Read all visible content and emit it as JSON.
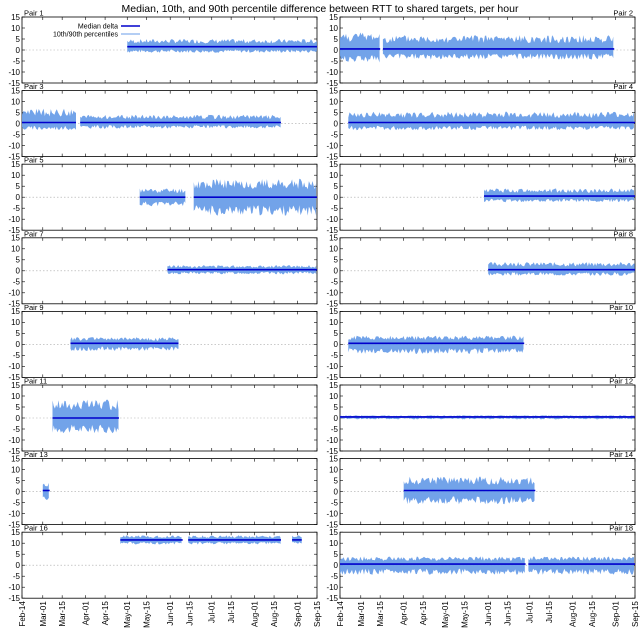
{
  "chart_data": {
    "type": "area",
    "title": "Median, 10th, and 90th percentile difference between RTT to shared targets, per hour",
    "xlabel": "",
    "ylabel": "",
    "ylim": [
      -15,
      15
    ],
    "yticks": [
      15,
      10,
      5,
      0,
      -5,
      -10,
      -15
    ],
    "xlim": [
      "2015-02-14",
      "2015-09-15"
    ],
    "xticks": [
      {
        "label": "Feb-14",
        "date": "2015-02-14"
      },
      {
        "label": "Mar-01",
        "date": "2015-03-01"
      },
      {
        "label": "Mar-15",
        "date": "2015-03-15"
      },
      {
        "label": "Apr-01",
        "date": "2015-04-01"
      },
      {
        "label": "Apr-15",
        "date": "2015-04-15"
      },
      {
        "label": "May-01",
        "date": "2015-05-01"
      },
      {
        "label": "May-15",
        "date": "2015-05-15"
      },
      {
        "label": "Jun-01",
        "date": "2015-06-01"
      },
      {
        "label": "Jun-15",
        "date": "2015-06-15"
      },
      {
        "label": "Jul-01",
        "date": "2015-07-01"
      },
      {
        "label": "Jul-15",
        "date": "2015-07-15"
      },
      {
        "label": "Aug-01",
        "date": "2015-08-01"
      },
      {
        "label": "Aug-15",
        "date": "2015-08-15"
      },
      {
        "label": "Sep-01",
        "date": "2015-09-01"
      },
      {
        "label": "Sep-15",
        "date": "2015-09-15"
      }
    ],
    "grid": "horizontal at 0",
    "legend": {
      "placement": "top-left of Pair 1",
      "entries": [
        {
          "label": "Median delta",
          "color": "#0000cc"
        },
        {
          "label": "10th/90th percentiles",
          "color": "#6a9ee8"
        }
      ]
    },
    "colors": {
      "median": "#0000cc",
      "band": "#6a9ee8"
    },
    "panels": [
      {
        "label": "Pair 1",
        "segments": [
          {
            "start": "2015-05-01",
            "end": "2015-09-15",
            "median": 1.5,
            "p10": -0.5,
            "p90": 4
          }
        ]
      },
      {
        "label": "Pair 2",
        "segments": [
          {
            "start": "2015-02-14",
            "end": "2015-03-15",
            "median": 0.5,
            "p10": -4,
            "p90": 6
          },
          {
            "start": "2015-03-17",
            "end": "2015-08-31",
            "median": 0.5,
            "p10": -3,
            "p90": 5
          }
        ]
      },
      {
        "label": "Pair 3",
        "segments": [
          {
            "start": "2015-02-14",
            "end": "2015-03-25",
            "median": 0.5,
            "p10": -2,
            "p90": 5
          },
          {
            "start": "2015-03-28",
            "end": "2015-08-20",
            "median": 0.5,
            "p10": -1.5,
            "p90": 3
          }
        ]
      },
      {
        "label": "Pair 4",
        "segments": [
          {
            "start": "2015-02-20",
            "end": "2015-09-15",
            "median": 0.5,
            "p10": -2,
            "p90": 4
          }
        ]
      },
      {
        "label": "Pair 5",
        "segments": [
          {
            "start": "2015-05-10",
            "end": "2015-06-12",
            "median": 0,
            "p10": -3,
            "p90": 3
          },
          {
            "start": "2015-06-18",
            "end": "2015-09-15",
            "median": 0,
            "p10": -6,
            "p90": 6
          }
        ]
      },
      {
        "label": "Pair 6",
        "segments": [
          {
            "start": "2015-05-29",
            "end": "2015-09-15",
            "median": 0.5,
            "p10": -1.5,
            "p90": 3
          }
        ]
      },
      {
        "label": "Pair 7",
        "segments": [
          {
            "start": "2015-05-30",
            "end": "2015-09-15",
            "median": 0.5,
            "p10": -1,
            "p90": 2
          }
        ]
      },
      {
        "label": "Pair 8",
        "segments": [
          {
            "start": "2015-06-01",
            "end": "2015-09-15",
            "median": 0.5,
            "p10": -1.5,
            "p90": 3
          }
        ]
      },
      {
        "label": "Pair 9",
        "segments": [
          {
            "start": "2015-03-21",
            "end": "2015-06-07",
            "median": 0.5,
            "p10": -2,
            "p90": 2.5
          }
        ]
      },
      {
        "label": "Pair 10",
        "segments": [
          {
            "start": "2015-02-20",
            "end": "2015-06-27",
            "median": 0.5,
            "p10": -3,
            "p90": 3
          }
        ]
      },
      {
        "label": "Pair 11",
        "segments": [
          {
            "start": "2015-03-08",
            "end": "2015-04-25",
            "median": 0,
            "p10": -5,
            "p90": 6
          }
        ]
      },
      {
        "label": "Pair 12",
        "segments": [
          {
            "start": "2015-02-14",
            "end": "2015-09-15",
            "median": 0.5,
            "p10": -0.3,
            "p90": 1
          }
        ]
      },
      {
        "label": "Pair 13",
        "segments": [
          {
            "start": "2015-03-01",
            "end": "2015-03-06",
            "median": 0.5,
            "p10": -3,
            "p90": 3
          }
        ]
      },
      {
        "label": "Pair 14",
        "segments": [
          {
            "start": "2015-04-01",
            "end": "2015-07-05",
            "median": 0.5,
            "p10": -4,
            "p90": 5
          }
        ]
      },
      {
        "label": "Pair 16",
        "segments": [
          {
            "start": "2015-04-26",
            "end": "2015-06-10",
            "median": 11.5,
            "p10": 10,
            "p90": 13
          },
          {
            "start": "2015-06-14",
            "end": "2015-08-20",
            "median": 11.5,
            "p10": 10,
            "p90": 13
          },
          {
            "start": "2015-08-28",
            "end": "2015-09-04",
            "median": 11.5,
            "p10": 10,
            "p90": 13
          }
        ]
      },
      {
        "label": "Pair 18",
        "segments": [
          {
            "start": "2015-02-14",
            "end": "2015-06-28",
            "median": 0.5,
            "p10": -3,
            "p90": 3
          },
          {
            "start": "2015-06-30",
            "end": "2015-09-15",
            "median": 0.5,
            "p10": -3,
            "p90": 3
          }
        ]
      }
    ]
  }
}
